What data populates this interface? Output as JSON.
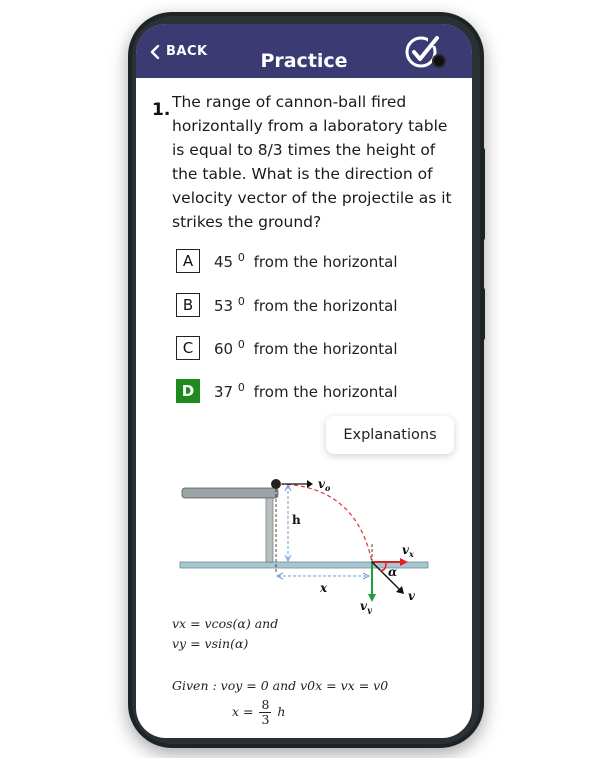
{
  "header": {
    "back_label": "BACK",
    "title": "Practice",
    "bg_color": "#3b3a72"
  },
  "question": {
    "number": "1.",
    "text": "The range of cannon-ball fired horizontally from a laboratory table is equal to 8/3 times the height of the table. What is the direction of velocity vector of the projectile as it strikes the ground?"
  },
  "options": [
    {
      "letter": "A",
      "value": "45",
      "sup": "0",
      "text": "from the horizontal",
      "correct": false
    },
    {
      "letter": "B",
      "value": "53",
      "sup": "0",
      "text": "from the horizontal",
      "correct": false
    },
    {
      "letter": "C",
      "value": "60",
      "sup": "0",
      "text": "from the horizontal",
      "correct": false
    },
    {
      "letter": "D",
      "value": "37",
      "sup": "0",
      "text": "from the horizontal",
      "correct": true
    }
  ],
  "explanations_button": "Explanations",
  "diagram": {
    "labels": {
      "v0": "v",
      "v0_sub": "o",
      "h": "h",
      "x": "x",
      "vx": "v",
      "vx_sub": "x",
      "vy": "v",
      "vy_sub": "y",
      "alpha": "α",
      "v": "v"
    }
  },
  "equations": {
    "line1": "vx = vcos(α) and",
    "line2": "vy = vsin(α)",
    "line3": "Given : voy = 0 and v0x = vx = v0",
    "line4_lhs": "x =",
    "line4_num": "8",
    "line4_den": "3",
    "line4_rhs": "h"
  },
  "colors": {
    "correct": "#1e8a1e",
    "accent": "#3b3a72"
  }
}
